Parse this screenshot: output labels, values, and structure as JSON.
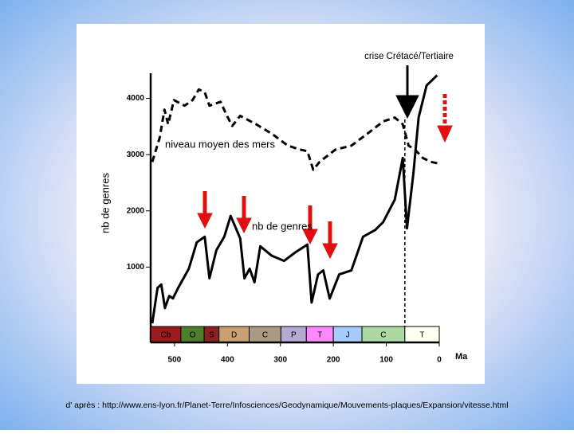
{
  "chart_data": {
    "type": "line",
    "ylabel": "nb de genres",
    "xlabel": "Ma",
    "xlim": [
      545,
      0
    ],
    "ylim": [
      0,
      4900
    ],
    "xticks": [
      500,
      400,
      300,
      200,
      100,
      0
    ],
    "yticks": [
      1000,
      2000,
      3000,
      4000
    ],
    "series": [
      {
        "name": "niveau moyen des mers",
        "color": "#000000",
        "dash": true,
        "x": [
          542,
          528,
          519,
          512,
          501,
          481,
          466,
          454,
          443,
          434,
          413,
          403,
          391,
          376,
          346,
          316,
          286,
          263,
          249,
          238,
          226,
          196,
          166,
          136,
          106,
          84,
          69,
          58,
          46,
          31,
          16,
          0
        ],
        "values": [
          2870,
          3300,
          3800,
          3540,
          3970,
          3870,
          3970,
          4160,
          4110,
          3870,
          3940,
          3730,
          3510,
          3690,
          3540,
          3370,
          3160,
          3090,
          3060,
          2730,
          2870,
          3090,
          3160,
          3370,
          3590,
          3660,
          3540,
          3160,
          3090,
          2940,
          2870,
          2840
        ]
      },
      {
        "name": "nb de genres",
        "color": "#000000",
        "dash": false,
        "x": [
          542,
          532,
          525,
          518,
          510,
          503,
          493,
          473,
          458,
          443,
          434,
          421,
          406,
          394,
          376,
          368,
          358,
          349,
          338,
          316,
          293,
          272,
          249,
          241,
          229,
          219,
          207,
          189,
          166,
          144,
          121,
          106,
          84,
          69,
          61,
          49,
          39,
          24,
          4
        ],
        "values": [
          0,
          630,
          690,
          270,
          486,
          443,
          630,
          970,
          1440,
          1540,
          800,
          1300,
          1540,
          1910,
          1510,
          800,
          970,
          730,
          1370,
          1200,
          1110,
          1260,
          1400,
          370,
          870,
          940,
          440,
          870,
          940,
          1540,
          1660,
          1800,
          2200,
          2940,
          1690,
          2660,
          3660,
          4230,
          4410
        ]
      }
    ],
    "periods": [
      {
        "label": "Cb",
        "start": 545,
        "end": 488,
        "color": "#9a1c1c"
      },
      {
        "label": "O",
        "start": 488,
        "end": 444,
        "color": "#4f7f2a"
      },
      {
        "label": "S",
        "start": 444,
        "end": 416,
        "color": "#8e2222"
      },
      {
        "label": "D",
        "start": 416,
        "end": 359,
        "color": "#c9a170"
      },
      {
        "label": "C",
        "start": 359,
        "end": 299,
        "color": "#aa9a82"
      },
      {
        "label": "P",
        "start": 299,
        "end": 251,
        "color": "#b4aad4"
      },
      {
        "label": "T",
        "start": 251,
        "end": 200,
        "color": "#ff88ff"
      },
      {
        "label": "J",
        "start": 200,
        "end": 146,
        "color": "#a6ccff"
      },
      {
        "label": "C",
        "start": 146,
        "end": 65,
        "color": "#acd9a2"
      },
      {
        "label": "T",
        "start": 65,
        "end": 0,
        "color": "#fffff2"
      }
    ],
    "event": {
      "label": "crise Crétacé/Tertiaire",
      "x": 65
    },
    "source": "d' après : http://www.ens-lyon.fr/Planet-Terre/Infosciences/Geodynamique/Mouvements-plaques/Expansion/vitesse.html"
  }
}
